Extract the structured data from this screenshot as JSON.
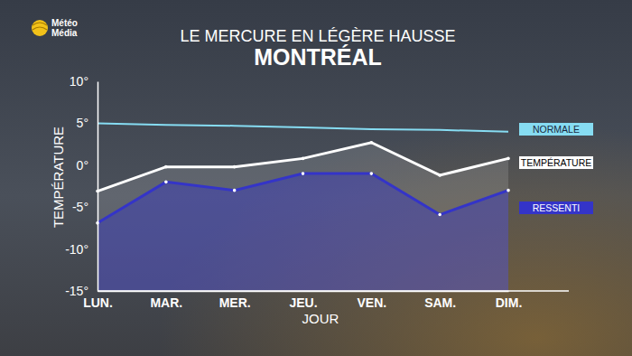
{
  "chart_data": {
    "type": "line",
    "title": "MONTRÉAL",
    "subtitle": "LE MERCURE EN LÉGÈRE HAUSSE",
    "x_label": "JOUR",
    "y_label": "TEMPÉRATURE",
    "categories": [
      "LUN.",
      "MAR.",
      "MER.",
      "JEU.",
      "VEN.",
      "SAM.",
      "DIM."
    ],
    "series": [
      {
        "name": "NORMALE",
        "color": "#86dcf2",
        "type": "line",
        "marker": "none",
        "values": [
          5.0,
          4.8,
          4.7,
          4.5,
          4.3,
          4.2,
          4.0
        ]
      },
      {
        "name": "TEMPÉRATURE",
        "color": "#ffffff",
        "type": "area",
        "marker": "circle",
        "values": [
          -3.1,
          -0.2,
          -0.2,
          0.8,
          2.7,
          -1.2,
          0.8
        ]
      },
      {
        "name": "RESSENTI",
        "color": "#3434c8",
        "type": "area",
        "marker": "circle",
        "values": [
          -6.9,
          -2.0,
          -3.0,
          -1.0,
          -1.0,
          -5.9,
          -3.0
        ]
      }
    ],
    "ylim": [
      -15,
      10
    ],
    "yticks": [
      {
        "value": -15,
        "label": "-15°"
      },
      {
        "value": -10,
        "label": "-10°"
      },
      {
        "value": -5,
        "label": "-5°"
      },
      {
        "value": 0,
        "label": "0°"
      },
      {
        "value": 5,
        "label": "5°"
      },
      {
        "value": 10,
        "label": "10°"
      }
    ],
    "legend": "right",
    "grid": false
  },
  "logo": {
    "lines": [
      "Météo",
      "Média"
    ]
  }
}
